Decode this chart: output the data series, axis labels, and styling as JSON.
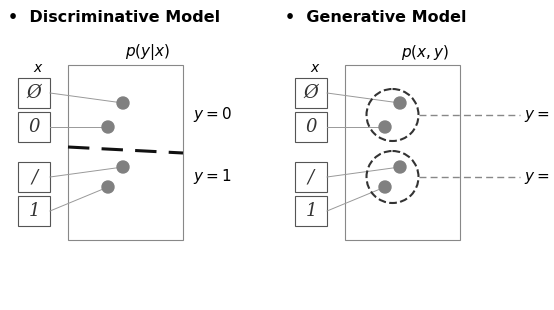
{
  "bg_color": "#ffffff",
  "title_left": "Discriminative Model",
  "title_right": "Generative Model",
  "formula_left": "$p(y|x)$",
  "formula_right": "$p(x, y)$",
  "x_label": "$x$",
  "dot_color": "#808080",
  "label_y0": "$y = 0$",
  "label_y1": "$y = 1$",
  "title_fontsize": 11.5,
  "formula_fontsize": 11,
  "digit_fontsize": 13,
  "label_fontsize": 11
}
